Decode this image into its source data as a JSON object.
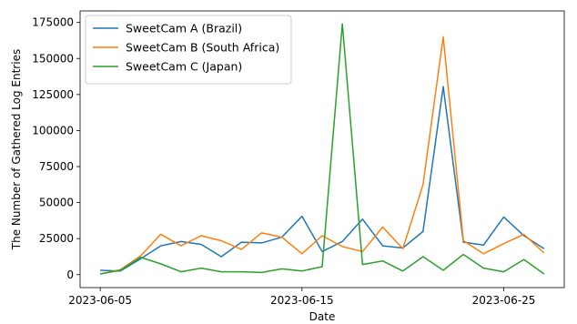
{
  "chart_data": {
    "type": "line",
    "xlabel": "Date",
    "ylabel": "The Number of Gathered Log Entries",
    "x": [
      "2023-06-05",
      "2023-06-06",
      "2023-06-07",
      "2023-06-08",
      "2023-06-09",
      "2023-06-10",
      "2023-06-11",
      "2023-06-12",
      "2023-06-13",
      "2023-06-14",
      "2023-06-15",
      "2023-06-16",
      "2023-06-17",
      "2023-06-18",
      "2023-06-19",
      "2023-06-20",
      "2023-06-21",
      "2023-06-22",
      "2023-06-23",
      "2023-06-24",
      "2023-06-25",
      "2023-06-26",
      "2023-06-27"
    ],
    "x_ticks": [
      "2023-06-05",
      "2023-06-15",
      "2023-06-25"
    ],
    "xlim": [
      "2023-06-04",
      "2023-06-28"
    ],
    "y_ticks": [
      0,
      25000,
      50000,
      75000,
      100000,
      125000,
      150000,
      175000
    ],
    "y_tick_labels": [
      "0",
      "25000",
      "50000",
      "75000",
      "100000",
      "125000",
      "150000",
      "175000"
    ],
    "ylim": [
      -9000,
      183000
    ],
    "grid": false,
    "legend_position": "top-left",
    "series": [
      {
        "name": "SweetCam A (Brazil)",
        "color": "#1f77b4",
        "values": [
          3000,
          2500,
          11000,
          20000,
          23000,
          21000,
          12500,
          22500,
          22000,
          26000,
          40500,
          16000,
          23000,
          38500,
          20000,
          18500,
          30000,
          130500,
          22500,
          20500,
          40000,
          27000,
          18000
        ]
      },
      {
        "name": "SweetCam B (South Africa)",
        "color": "#ff7f0e",
        "values": [
          500,
          3500,
          13000,
          28000,
          20000,
          27000,
          23500,
          17500,
          29000,
          26000,
          14500,
          27000,
          19500,
          16000,
          33000,
          18000,
          62500,
          165000,
          23500,
          14500,
          21500,
          28000,
          15000
        ]
      },
      {
        "name": "SweetCam C (Japan)",
        "color": "#2ca02c",
        "values": [
          500,
          3000,
          12000,
          7500,
          2000,
          4500,
          2000,
          2000,
          1500,
          4000,
          2500,
          5500,
          174000,
          7000,
          9500,
          2500,
          12500,
          3000,
          14000,
          4500,
          2000,
          10500,
          500
        ]
      }
    ]
  }
}
